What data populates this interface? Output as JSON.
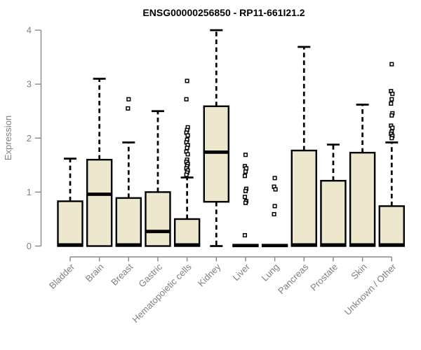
{
  "page": {
    "background": "#ffffff"
  },
  "chart_data": {
    "type": "boxplot",
    "title": "ENSG00000256850 - RP11-661I21.2",
    "ylabel": "Expression",
    "xlabel": "",
    "ylim": [
      0,
      4
    ],
    "yticks": [
      0,
      1,
      2,
      3,
      4
    ],
    "grid": false,
    "legend": "none",
    "categories": [
      "Bladder",
      "Brain",
      "Breast",
      "Gastric",
      "Hematopoietic cells",
      "Kidney",
      "Liver",
      "Lung",
      "Pancreas",
      "Prostate",
      "Skin",
      "Unknown / Other"
    ],
    "boxes": [
      {
        "category": "Bladder",
        "whisker_low": 0,
        "q1": 0,
        "median": 0.02,
        "q3": 0.83,
        "whisker_high": 1.62,
        "outliers": []
      },
      {
        "category": "Brain",
        "whisker_low": 0,
        "q1": 0,
        "median": 0.96,
        "q3": 1.6,
        "whisker_high": 3.1,
        "outliers": []
      },
      {
        "category": "Breast",
        "whisker_low": 0,
        "q1": 0,
        "median": 0.02,
        "q3": 0.89,
        "whisker_high": 1.92,
        "outliers": [
          2.72,
          2.55
        ]
      },
      {
        "category": "Gastric",
        "whisker_low": 0,
        "q1": 0,
        "median": 0.27,
        "q3": 1.0,
        "whisker_high": 2.5,
        "outliers": []
      },
      {
        "category": "Hematopoietic cells",
        "whisker_low": 0,
        "q1": 0,
        "median": 0.02,
        "q3": 0.5,
        "whisker_high": 1.27,
        "outliers": [
          3.06,
          2.72,
          2.2,
          2.15,
          2.1,
          2.05,
          1.97,
          1.92,
          1.87,
          1.82,
          1.75,
          1.7,
          1.6,
          1.56,
          1.52,
          1.48,
          1.44,
          1.4,
          1.36,
          1.32
        ]
      },
      {
        "category": "Kidney",
        "whisker_low": 0,
        "q1": 0.82,
        "median": 1.74,
        "q3": 2.59,
        "whisker_high": 4.0,
        "outliers": []
      },
      {
        "category": "Liver",
        "whisker_low": 0,
        "q1": 0,
        "median": 0.01,
        "q3": 0.02,
        "whisker_high": 0.02,
        "outliers": [
          1.69,
          1.48,
          1.44,
          1.38,
          1.3,
          1.06,
          1.02,
          0.91,
          0.83,
          0.8,
          0.2
        ]
      },
      {
        "category": "Lung",
        "whisker_low": 0,
        "q1": 0,
        "median": 0.01,
        "q3": 0.02,
        "whisker_high": 0.02,
        "outliers": [
          1.26,
          1.1,
          1.05,
          0.74,
          0.59
        ]
      },
      {
        "category": "Pancreas",
        "whisker_low": 0,
        "q1": 0,
        "median": 0.02,
        "q3": 1.77,
        "whisker_high": 3.69,
        "outliers": []
      },
      {
        "category": "Prostate",
        "whisker_low": 0,
        "q1": 0,
        "median": 0.02,
        "q3": 1.21,
        "whisker_high": 1.88,
        "outliers": []
      },
      {
        "category": "Skin",
        "whisker_low": 0,
        "q1": 0,
        "median": 0.02,
        "q3": 1.73,
        "whisker_high": 2.62,
        "outliers": []
      },
      {
        "category": "Unknown / Other",
        "whisker_low": 0,
        "q1": 0,
        "median": 0.02,
        "q3": 0.74,
        "whisker_high": 1.92,
        "outliers": [
          3.37,
          2.87,
          2.82,
          2.72,
          2.64,
          2.46,
          2.42,
          2.23,
          2.19,
          2.12,
          2.08,
          2.04,
          2.0
        ]
      }
    ],
    "colors": {
      "box_fill": "#EDE8CD",
      "box_border": "#000000",
      "median": "#000000",
      "whisker": "#000000",
      "outlier_fill": "#ffffff",
      "axis": "#888888",
      "tick_label": "#7f7f7f",
      "title": "#000000",
      "background": "#ffffff"
    }
  }
}
